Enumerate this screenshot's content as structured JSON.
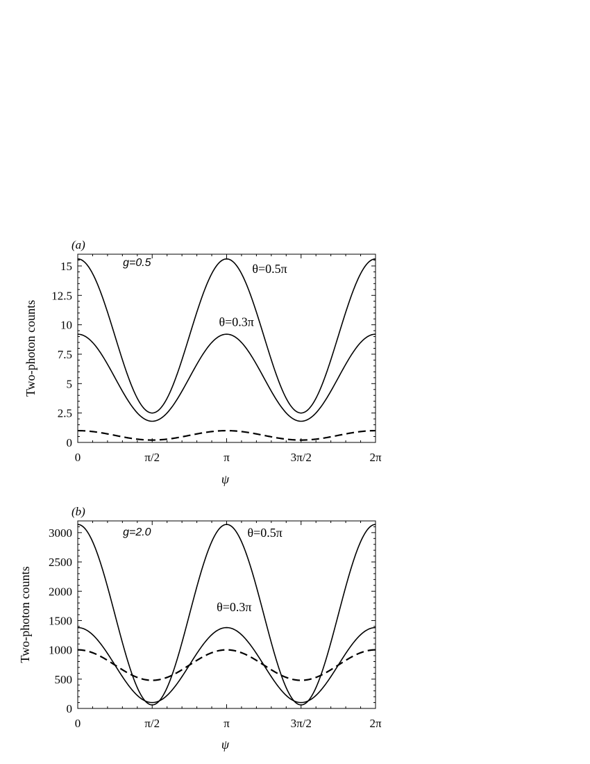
{
  "chart_data": [
    {
      "type": "line",
      "panel_label": "(a)",
      "xlabel": "ψ",
      "ylabel": "Two-photon counts",
      "xlim": [
        0,
        6.2832
      ],
      "ylim": [
        0,
        16
      ],
      "x_ticks": [
        {
          "value": 0,
          "label": "0"
        },
        {
          "value": 1.5708,
          "label": "π/2"
        },
        {
          "value": 3.1416,
          "label": "π"
        },
        {
          "value": 4.7124,
          "label": "3π/2"
        },
        {
          "value": 6.2832,
          "label": "2π"
        }
      ],
      "y_ticks": [
        {
          "value": 0,
          "label": "0"
        },
        {
          "value": 2.5,
          "label": "2.5"
        },
        {
          "value": 5,
          "label": "5"
        },
        {
          "value": 7.5,
          "label": "7.5"
        },
        {
          "value": 10,
          "label": "10"
        },
        {
          "value": 12.5,
          "label": "12.5"
        },
        {
          "value": 15,
          "label": "15"
        }
      ],
      "annotations": [
        {
          "text": "g=0.5",
          "style": "g",
          "at": [
            1.25,
            15.0
          ]
        },
        {
          "text": "θ=0.5π",
          "style": "theta",
          "at": [
            4.05,
            14.4
          ]
        },
        {
          "text": "θ=0.3π",
          "style": "theta",
          "at": [
            3.35,
            9.9
          ]
        }
      ],
      "series": [
        {
          "style": "solid",
          "max": 15.6,
          "min": 2.5,
          "x": [
            0,
            0.7854,
            1.5708,
            2.3562,
            3.1416,
            3.927,
            4.7124,
            5.4978,
            6.2832
          ],
          "y": [
            15.6,
            9.05,
            2.5,
            9.05,
            15.6,
            9.05,
            2.5,
            9.05,
            15.6
          ]
        },
        {
          "style": "solid",
          "max": 9.2,
          "min": 1.8,
          "x": [
            0,
            0.7854,
            1.5708,
            2.3562,
            3.1416,
            3.927,
            4.7124,
            5.4978,
            6.2832
          ],
          "y": [
            9.2,
            5.5,
            1.8,
            5.5,
            9.2,
            5.5,
            1.8,
            5.5,
            9.2
          ]
        },
        {
          "style": "dashed",
          "max": 1.0,
          "min": 0.2,
          "x": [
            0,
            0.7854,
            1.5708,
            2.3562,
            3.1416,
            3.927,
            4.7124,
            5.4978,
            6.2832
          ],
          "y": [
            1.0,
            0.6,
            0.2,
            0.6,
            1.0,
            0.6,
            0.2,
            0.6,
            1.0
          ]
        }
      ]
    },
    {
      "type": "line",
      "panel_label": "(b)",
      "xlabel": "ψ",
      "ylabel": "Two-photon counts",
      "xlim": [
        0,
        6.2832
      ],
      "ylim": [
        0,
        3200
      ],
      "x_ticks": [
        {
          "value": 0,
          "label": "0"
        },
        {
          "value": 1.5708,
          "label": "π/2"
        },
        {
          "value": 3.1416,
          "label": "π"
        },
        {
          "value": 4.7124,
          "label": "3π/2"
        },
        {
          "value": 6.2832,
          "label": "2π"
        }
      ],
      "y_ticks": [
        {
          "value": 0,
          "label": "0"
        },
        {
          "value": 500,
          "label": "500"
        },
        {
          "value": 1000,
          "label": "1000"
        },
        {
          "value": 1500,
          "label": "1500"
        },
        {
          "value": 2000,
          "label": "2000"
        },
        {
          "value": 2500,
          "label": "2500"
        },
        {
          "value": 3000,
          "label": "3000"
        }
      ],
      "annotations": [
        {
          "text": "g=2.0",
          "style": "g",
          "at": [
            1.25,
            2950
          ]
        },
        {
          "text": "θ=0.5π",
          "style": "theta",
          "at": [
            3.95,
            2930
          ]
        },
        {
          "text": "θ=0.3π",
          "style": "theta",
          "at": [
            3.3,
            1660
          ]
        }
      ],
      "series": [
        {
          "style": "solid",
          "max": 3140,
          "min": 60,
          "x": [
            0,
            0.7854,
            1.5708,
            2.3562,
            3.1416,
            3.927,
            4.7124,
            5.4978,
            6.2832
          ],
          "y": [
            3140,
            1600,
            60,
            1600,
            3140,
            1600,
            60,
            1600,
            3140
          ]
        },
        {
          "style": "solid",
          "max": 1380,
          "min": 100,
          "x": [
            0,
            0.7854,
            1.5708,
            2.3562,
            3.1416,
            3.927,
            4.7124,
            5.4978,
            6.2832
          ],
          "y": [
            1380,
            740,
            100,
            740,
            1380,
            740,
            100,
            740,
            1380
          ]
        },
        {
          "style": "dashed",
          "max": 1000,
          "min": 480,
          "x": [
            0,
            0.7854,
            1.5708,
            2.3562,
            3.1416,
            3.927,
            4.7124,
            5.4978,
            6.2832
          ],
          "y": [
            1000,
            740,
            480,
            740,
            1000,
            740,
            480,
            740,
            1000
          ]
        }
      ]
    }
  ]
}
